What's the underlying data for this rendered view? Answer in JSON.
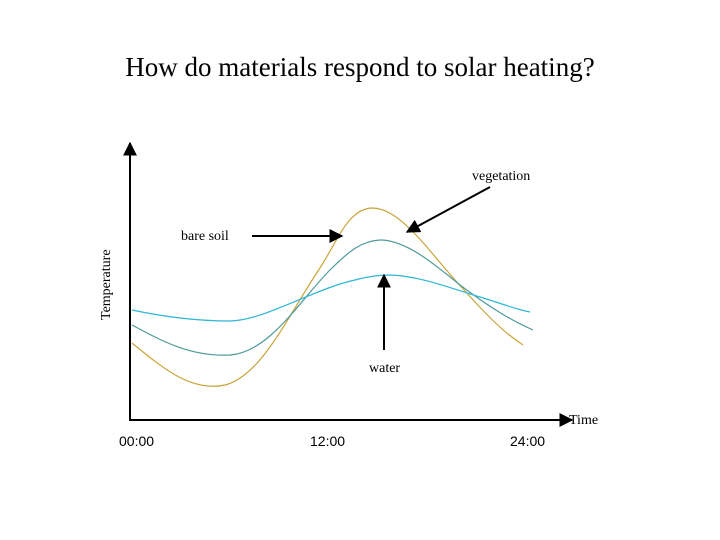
{
  "title": "How do materials respond to solar heating?",
  "axes": {
    "y_label": "Temperature",
    "x_label": "Time",
    "ticks": [
      "00:00",
      "12:00",
      "24:00"
    ]
  },
  "curves": [
    {
      "name": "bare soil",
      "color": "#c8a43a"
    },
    {
      "name": "vegetation",
      "color": "#4f9a9a"
    },
    {
      "name": "water",
      "color": "#2fb6d8"
    }
  ],
  "labels": {
    "vegetation": "vegetation",
    "bare_soil": "bare soil",
    "water": "water"
  }
}
